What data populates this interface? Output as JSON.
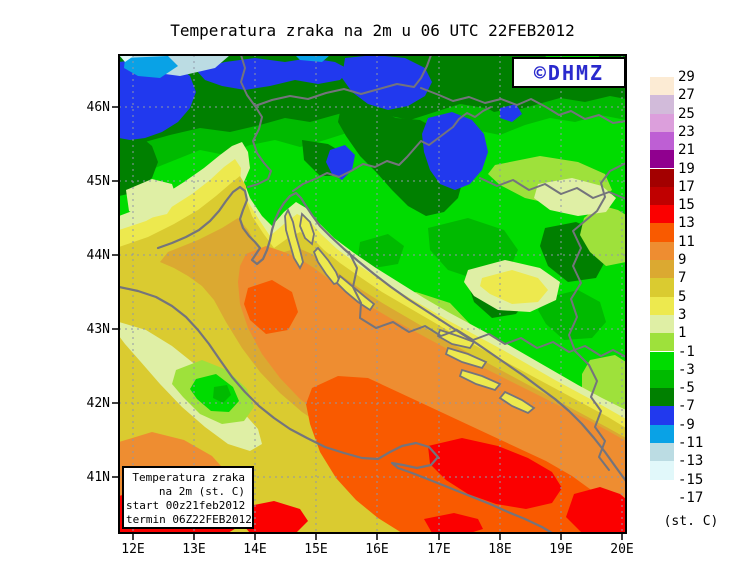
{
  "title": "Temperatura zraka na 2m u 06 UTC 22FEB2012",
  "badge": {
    "text": "©DHMZ",
    "color": "#2a2acd"
  },
  "inset_box": {
    "lines": [
      "Temperatura zraka",
      "na 2m (st. C)",
      "start 00z21feb2012",
      "termin 06Z22FEB2012"
    ]
  },
  "axes": {
    "lat_labels": [
      "46N",
      "45N",
      "44N",
      "43N",
      "42N",
      "41N"
    ],
    "lon_labels": [
      "12E",
      "13E",
      "14E",
      "15E",
      "16E",
      "17E",
      "18E",
      "19E",
      "20E"
    ]
  },
  "legend": {
    "unit_label": "(st. C)",
    "boundaries": [
      "29",
      "27",
      "25",
      "23",
      "21",
      "19",
      "17",
      "15",
      "13",
      "11",
      "9",
      "7",
      "5",
      "3",
      "1",
      "-1",
      "-3",
      "-5",
      "-7",
      "-9",
      "-11",
      "-13",
      "-15",
      "-17"
    ],
    "box_colors": [
      "#FCEBD4",
      "#D2BBDA",
      "#DC9FDC",
      "#BE5FD4",
      "#90008F",
      "#A30000",
      "#C00000",
      "#FB0000",
      "#F95A00",
      "#EE8D31",
      "#DBA931",
      "#DACB30",
      "#EDE94E",
      "#DFEFA5",
      "#9EE13B",
      "#00DC00",
      "#00BA00",
      "#008000",
      "#2139EE",
      "#09A2E6",
      "#BBDCE3",
      "#E1F8FA",
      "#FFFFFF"
    ]
  }
}
